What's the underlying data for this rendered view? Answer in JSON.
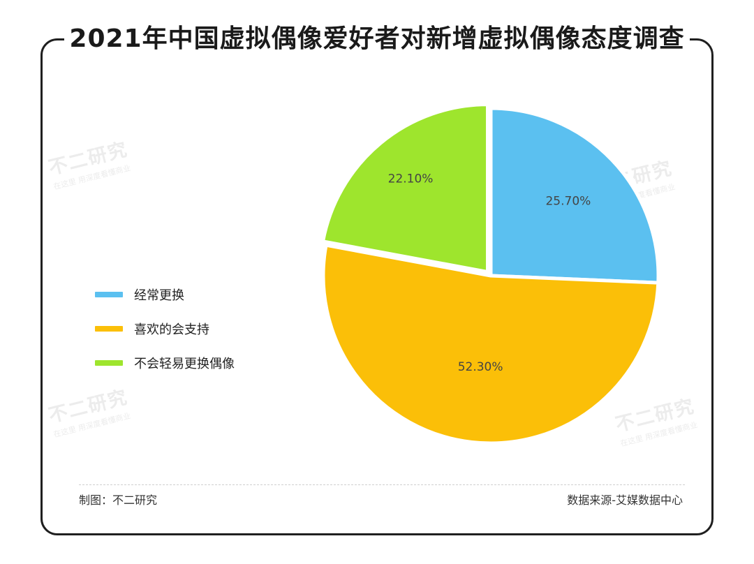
{
  "title": "2021年中国虚拟偶像爱好者对新增虚拟偶像态度调查",
  "chart_data": {
    "type": "pie",
    "title": "2021年中国虚拟偶像爱好者对新增虚拟偶像态度调查",
    "slices": [
      {
        "label": "经常更换",
        "value": 25.7,
        "display": "25.70%",
        "color": "#5bc0f0"
      },
      {
        "label": "喜欢的会支持",
        "value": 52.3,
        "display": "52.30%",
        "color": "#fbbf08"
      },
      {
        "label": "不会轻易更换偶像",
        "value": 22.1,
        "display": "22.10%",
        "color": "#9ee52d"
      }
    ],
    "legend_position": "left"
  },
  "footer": {
    "left": "制图：不二研究",
    "right": "数据来源-艾媒数据中心"
  },
  "watermark": {
    "main": "不二研究",
    "sub": "在这里 用深度看懂商业"
  }
}
